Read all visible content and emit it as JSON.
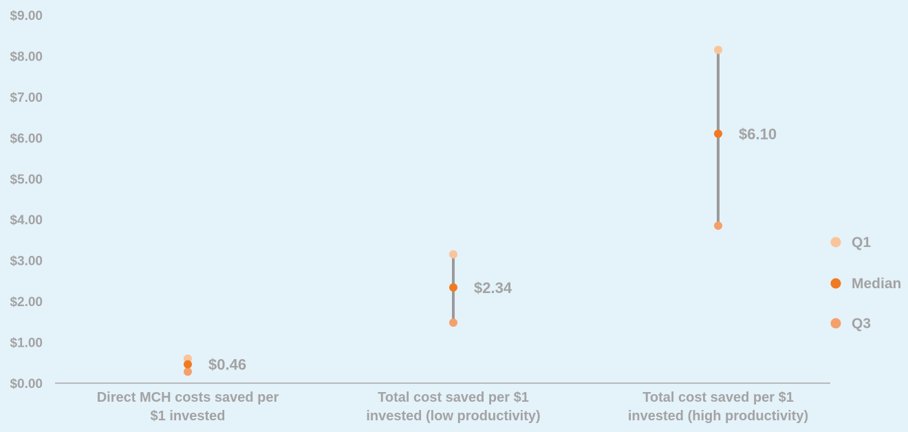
{
  "chart_data": {
    "type": "scatter",
    "title": "",
    "xlabel": "",
    "ylabel": "",
    "ylim": [
      0,
      9
    ],
    "yticks": [
      "$0.00",
      "$1.00",
      "$2.00",
      "$3.00",
      "$4.00",
      "$5.00",
      "$6.00",
      "$7.00",
      "$8.00",
      "$9.00"
    ],
    "categories": [
      [
        "Direct MCH costs saved per",
        "$1 invested"
      ],
      [
        "Total cost saved per $1",
        "invested (low productivity)"
      ],
      [
        "Total cost saved per $1",
        "invested (high productivity)"
      ]
    ],
    "series": [
      {
        "name": "Q1",
        "color": "#f9c49a",
        "values": [
          0.6,
          3.15,
          8.15
        ]
      },
      {
        "name": "Median",
        "color": "#f07a21",
        "values": [
          0.46,
          2.34,
          6.1
        ]
      },
      {
        "name": "Q3",
        "color": "#f5a06a",
        "values": [
          0.28,
          1.48,
          3.85
        ]
      }
    ],
    "data_labels": [
      "$0.46",
      "$2.34",
      "$6.10"
    ],
    "grid": false,
    "legend": "right",
    "range_line_color": "#9a9a9a",
    "text_color": "#a3a3a3"
  }
}
